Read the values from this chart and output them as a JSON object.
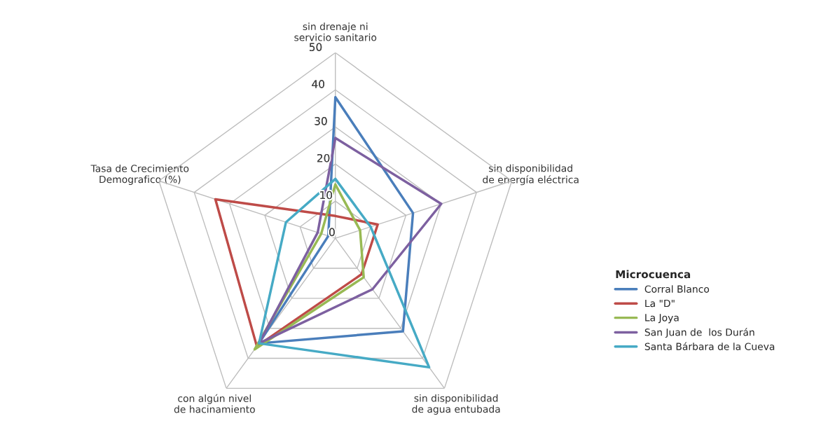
{
  "chart_data": {
    "type": "radar",
    "categories": [
      "sin drenaje ni\nservicio sanitario",
      "sin disponibilidad\nde energía eléctrica",
      "sin disponibilidad\nde agua entubada",
      "con algún nivel\nde hacinamiento",
      "Tasa de Crecimiento\nDemografico (%)"
    ],
    "series": [
      {
        "name": "Corral Blanco",
        "color": "#4a7ebb",
        "values": [
          38,
          22,
          31,
          35,
          2
        ]
      },
      {
        "name": "La \"D\"",
        "color": "#be4b48",
        "values": [
          6,
          12,
          12,
          36,
          34
        ]
      },
      {
        "name": "La Joya",
        "color": "#98b954",
        "values": [
          14.5,
          7,
          13,
          37,
          4
        ]
      },
      {
        "name": "San Juan de  los Durán",
        "color": "#7d60a0",
        "values": [
          27,
          30,
          17,
          35,
          5
        ]
      },
      {
        "name": "Santa Bárbara de la Cueva",
        "color": "#46aac5",
        "values": [
          16,
          10,
          43,
          35,
          14
        ]
      }
    ],
    "ylim": [
      0,
      50
    ],
    "yticks": [
      0,
      10,
      20,
      30,
      40,
      50
    ],
    "grid": true,
    "legend": "right",
    "legend_title": "Microcuenca"
  }
}
